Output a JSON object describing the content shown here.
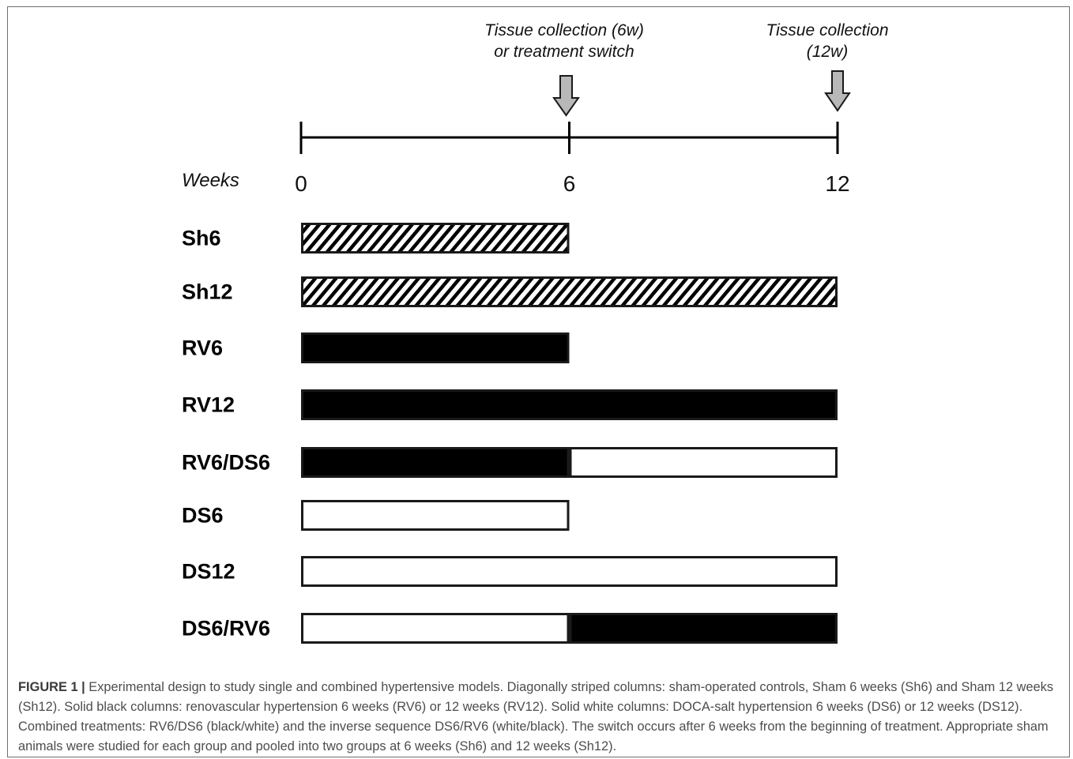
{
  "colors": {
    "black_fill": "#000000",
    "white_fill": "#ffffff",
    "arrow_fill": "#b8b8b8",
    "outline": "#1a1a1a"
  },
  "annotations": {
    "collection_6w_line1": "Tissue collection (6w)",
    "collection_6w_line2": "or treatment switch",
    "collection_12w_line1": "Tissue collection",
    "collection_12w_line2": "(12w)"
  },
  "axis": {
    "label": "Weeks",
    "ticks": [
      {
        "value": 0,
        "label": "0"
      },
      {
        "value": 6,
        "label": "6"
      },
      {
        "value": 12,
        "label": "12"
      }
    ]
  },
  "groups": [
    {
      "label": "Sh6",
      "segments": [
        {
          "start": 0,
          "end": 6,
          "fill": "striped"
        }
      ]
    },
    {
      "label": "Sh12",
      "segments": [
        {
          "start": 0,
          "end": 12,
          "fill": "striped"
        }
      ]
    },
    {
      "label": "RV6",
      "segments": [
        {
          "start": 0,
          "end": 6,
          "fill": "black"
        }
      ]
    },
    {
      "label": "RV12",
      "segments": [
        {
          "start": 0,
          "end": 12,
          "fill": "black"
        }
      ]
    },
    {
      "label": "RV6/DS6",
      "segments": [
        {
          "start": 0,
          "end": 6,
          "fill": "black"
        },
        {
          "start": 6,
          "end": 12,
          "fill": "white"
        }
      ]
    },
    {
      "label": "DS6",
      "segments": [
        {
          "start": 0,
          "end": 6,
          "fill": "white"
        }
      ]
    },
    {
      "label": "DS12",
      "segments": [
        {
          "start": 0,
          "end": 12,
          "fill": "white"
        }
      ]
    },
    {
      "label": "DS6/RV6",
      "segments": [
        {
          "start": 0,
          "end": 6,
          "fill": "white"
        },
        {
          "start": 6,
          "end": 12,
          "fill": "black"
        }
      ]
    }
  ],
  "caption": {
    "label": "FIGURE 1 |",
    "text": " Experimental design to study single and combined hypertensive models. Diagonally striped columns: sham-operated controls, Sham 6 weeks (Sh6) and Sham 12 weeks (Sh12). Solid black columns: renovascular hypertension 6 weeks (RV6) or 12 weeks (RV12). Solid white columns: DOCA-salt hypertension 6 weeks (DS6) or 12 weeks (DS12). Combined treatments: RV6/DS6 (black/white) and the inverse sequence DS6/RV6 (white/black). The switch occurs after 6 weeks from the beginning of treatment. Appropriate sham animals were studied for each group and pooled into two groups at 6 weeks (Sh6) and 12 weeks (Sh12)."
  }
}
